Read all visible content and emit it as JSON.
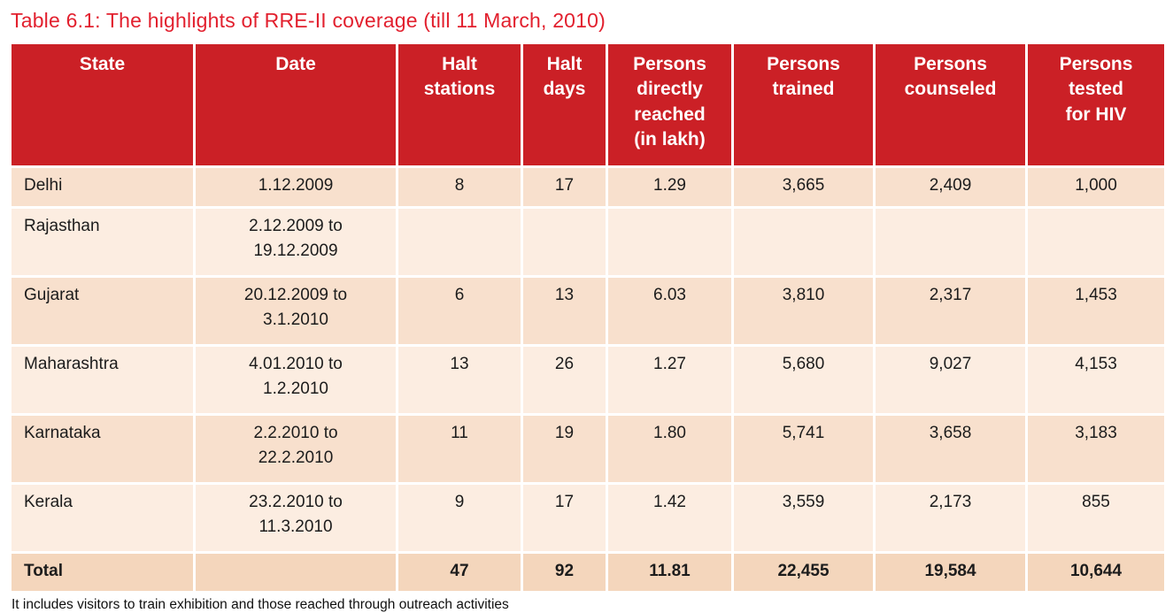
{
  "title": "Table 6.1: The highlights of RRE-II coverage (till 11 March, 2010)",
  "footnote": "It includes visitors to train exhibition and those reached through outreach activities",
  "colors": {
    "title_red": "#e2202e",
    "header_bg": "#cb2026",
    "header_text": "#ffffff",
    "row_dark": "#f8e0cd",
    "row_light": "#fcede1",
    "total_bg": "#f4d6bc",
    "body_text": "#1c1c1c"
  },
  "table": {
    "headers": [
      "State",
      "Date",
      "Halt\nstations",
      "Halt\ndays",
      "Persons\ndirectly\nreached\n(in lakh)",
      "Persons\ntrained",
      "Persons\ncounseled",
      "Persons\ntested\nfor HIV"
    ],
    "rows": [
      {
        "state": "Delhi",
        "date": "1.12.2009",
        "halt_stations": "8",
        "halt_days": "17",
        "persons_reached": "1.29",
        "persons_trained": "3,665",
        "persons_counseled": "2,409",
        "persons_tested": "1,000"
      },
      {
        "state": "Rajasthan",
        "date": "2.12.2009 to\n19.12.2009",
        "halt_stations": "",
        "halt_days": "",
        "persons_reached": "",
        "persons_trained": "",
        "persons_counseled": "",
        "persons_tested": ""
      },
      {
        "state": "Gujarat",
        "date": "20.12.2009 to\n3.1.2010",
        "halt_stations": "6",
        "halt_days": "13",
        "persons_reached": "6.03",
        "persons_trained": "3,810",
        "persons_counseled": "2,317",
        "persons_tested": "1,453"
      },
      {
        "state": "Maharashtra",
        "date": "4.01.2010 to\n1.2.2010",
        "halt_stations": "13",
        "halt_days": "26",
        "persons_reached": "1.27",
        "persons_trained": "5,680",
        "persons_counseled": "9,027",
        "persons_tested": "4,153"
      },
      {
        "state": "Karnataka",
        "date": "2.2.2010 to\n22.2.2010",
        "halt_stations": "11",
        "halt_days": "19",
        "persons_reached": "1.80",
        "persons_trained": "5,741",
        "persons_counseled": "3,658",
        "persons_tested": "3,183"
      },
      {
        "state": "Kerala",
        "date": "23.2.2010 to\n11.3.2010",
        "halt_stations": "9",
        "halt_days": "17",
        "persons_reached": "1.42",
        "persons_trained": "3,559",
        "persons_counseled": "2,173",
        "persons_tested": "855"
      }
    ],
    "total": {
      "state": "Total",
      "date": "",
      "halt_stations": "47",
      "halt_days": "92",
      "persons_reached": "11.81",
      "persons_trained": "22,455",
      "persons_counseled": "19,584",
      "persons_tested": "10,644"
    }
  }
}
